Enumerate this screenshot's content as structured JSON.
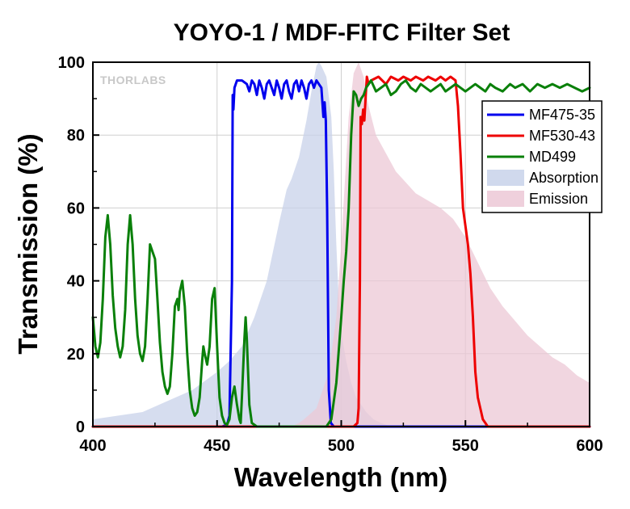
{
  "chart_data": {
    "type": "line",
    "title": "YOYO-1 / MDF-FITC Filter Set",
    "xlabel": "Wavelength (nm)",
    "ylabel": "Transmission (%)",
    "xlim": [
      400,
      600
    ],
    "ylim": [
      0,
      100
    ],
    "x_ticks": [
      400,
      450,
      500,
      550,
      600
    ],
    "y_ticks": [
      0,
      20,
      40,
      60,
      80,
      100
    ],
    "grid": true,
    "legend_position": "right",
    "logo_text": "THORLABS",
    "series": [
      {
        "name": "MF475-35",
        "kind": "line",
        "color": "#0000ee",
        "points": [
          [
            400,
            0
          ],
          [
            452,
            0
          ],
          [
            454,
            0.5
          ],
          [
            455,
            3
          ],
          [
            456,
            40
          ],
          [
            456.3,
            91
          ],
          [
            456.6,
            87
          ],
          [
            457,
            93
          ],
          [
            458,
            95
          ],
          [
            460,
            95
          ],
          [
            462,
            94
          ],
          [
            463,
            92
          ],
          [
            464,
            95
          ],
          [
            465,
            94
          ],
          [
            466,
            91
          ],
          [
            467,
            95
          ],
          [
            468,
            93
          ],
          [
            469,
            90
          ],
          [
            470,
            94
          ],
          [
            471,
            95
          ],
          [
            472,
            93
          ],
          [
            473,
            91
          ],
          [
            474,
            95
          ],
          [
            475,
            93
          ],
          [
            476,
            90
          ],
          [
            477,
            94
          ],
          [
            478,
            95
          ],
          [
            479,
            92
          ],
          [
            480,
            90
          ],
          [
            481,
            94
          ],
          [
            482,
            95
          ],
          [
            483,
            92
          ],
          [
            484,
            95
          ],
          [
            485,
            93
          ],
          [
            486,
            90
          ],
          [
            487,
            94
          ],
          [
            488,
            95
          ],
          [
            489,
            93
          ],
          [
            490,
            95
          ],
          [
            491,
            94
          ],
          [
            492,
            93
          ],
          [
            492.8,
            85
          ],
          [
            493.3,
            89
          ],
          [
            493.8,
            84
          ],
          [
            494.3,
            60
          ],
          [
            495,
            10
          ],
          [
            495.8,
            1
          ],
          [
            497,
            0
          ],
          [
            600,
            0
          ]
        ]
      },
      {
        "name": "MF530-43",
        "kind": "line",
        "color": "#ee0000",
        "points": [
          [
            400,
            0
          ],
          [
            505,
            0
          ],
          [
            506.5,
            1
          ],
          [
            507,
            5
          ],
          [
            507.5,
            40
          ],
          [
            507.8,
            85
          ],
          [
            508.3,
            83
          ],
          [
            508.8,
            87
          ],
          [
            509.3,
            84
          ],
          [
            509.8,
            90
          ],
          [
            510.3,
            96
          ],
          [
            511,
            94
          ],
          [
            512,
            95
          ],
          [
            515,
            96
          ],
          [
            518,
            94
          ],
          [
            520,
            96
          ],
          [
            523,
            95
          ],
          [
            525,
            96
          ],
          [
            528,
            95
          ],
          [
            530,
            96
          ],
          [
            533,
            95
          ],
          [
            535,
            96
          ],
          [
            538,
            95
          ],
          [
            540,
            96
          ],
          [
            542,
            95
          ],
          [
            544,
            96
          ],
          [
            546,
            95
          ],
          [
            547,
            88
          ],
          [
            548,
            75
          ],
          [
            549,
            60
          ],
          [
            550,
            55
          ],
          [
            551,
            50
          ],
          [
            552,
            42
          ],
          [
            553,
            30
          ],
          [
            554,
            15
          ],
          [
            555,
            8
          ],
          [
            556,
            5
          ],
          [
            557,
            2
          ],
          [
            558,
            1
          ],
          [
            559,
            0
          ],
          [
            600,
            0
          ]
        ]
      },
      {
        "name": "MD499",
        "kind": "line",
        "color": "#0a800a",
        "points": [
          [
            400,
            30
          ],
          [
            401,
            22
          ],
          [
            402,
            19
          ],
          [
            403,
            23
          ],
          [
            404,
            35
          ],
          [
            405,
            52
          ],
          [
            406,
            58
          ],
          [
            407,
            50
          ],
          [
            408,
            36
          ],
          [
            409,
            27
          ],
          [
            410,
            22
          ],
          [
            411,
            19
          ],
          [
            412,
            22
          ],
          [
            413,
            32
          ],
          [
            414,
            50
          ],
          [
            415,
            58
          ],
          [
            416,
            50
          ],
          [
            417,
            35
          ],
          [
            418,
            25
          ],
          [
            419,
            20
          ],
          [
            420,
            18
          ],
          [
            421,
            22
          ],
          [
            422,
            35
          ],
          [
            423,
            50
          ],
          [
            424,
            48
          ],
          [
            425,
            46
          ],
          [
            426,
            35
          ],
          [
            427,
            23
          ],
          [
            428,
            15
          ],
          [
            429,
            11
          ],
          [
            430,
            9
          ],
          [
            431,
            11
          ],
          [
            432,
            20
          ],
          [
            433,
            33
          ],
          [
            434,
            35
          ],
          [
            434.5,
            32
          ],
          [
            435,
            37
          ],
          [
            436,
            40
          ],
          [
            437,
            33
          ],
          [
            438,
            20
          ],
          [
            439,
            10
          ],
          [
            440,
            5
          ],
          [
            441,
            3
          ],
          [
            442,
            4
          ],
          [
            443,
            8
          ],
          [
            444,
            18
          ],
          [
            444.5,
            22
          ],
          [
            445,
            20
          ],
          [
            446,
            17
          ],
          [
            447,
            22
          ],
          [
            448,
            35
          ],
          [
            449,
            38
          ],
          [
            450,
            22
          ],
          [
            451,
            8
          ],
          [
            452,
            3
          ],
          [
            453,
            1
          ],
          [
            454,
            0.5
          ],
          [
            455,
            2
          ],
          [
            456,
            8
          ],
          [
            457,
            11
          ],
          [
            458,
            6
          ],
          [
            459,
            2
          ],
          [
            459.5,
            1
          ],
          [
            460,
            8
          ],
          [
            461,
            24
          ],
          [
            461.5,
            30
          ],
          [
            462,
            24
          ],
          [
            463,
            6
          ],
          [
            464,
            1
          ],
          [
            466,
            0
          ],
          [
            490,
            0
          ],
          [
            494,
            0
          ],
          [
            496,
            2
          ],
          [
            498,
            12
          ],
          [
            500,
            30
          ],
          [
            501,
            40
          ],
          [
            502,
            48
          ],
          [
            503,
            60
          ],
          [
            504,
            80
          ],
          [
            505,
            92
          ],
          [
            506,
            91
          ],
          [
            507,
            88
          ],
          [
            508,
            90
          ],
          [
            509,
            91
          ],
          [
            510,
            93
          ],
          [
            512,
            95
          ],
          [
            514,
            92
          ],
          [
            516,
            93
          ],
          [
            518,
            94
          ],
          [
            520,
            91
          ],
          [
            522,
            92
          ],
          [
            524,
            94
          ],
          [
            526,
            95
          ],
          [
            528,
            93
          ],
          [
            530,
            92
          ],
          [
            532,
            94
          ],
          [
            534,
            93
          ],
          [
            536,
            92
          ],
          [
            538,
            93
          ],
          [
            540,
            94
          ],
          [
            542,
            92
          ],
          [
            544,
            93
          ],
          [
            546,
            94
          ],
          [
            548,
            93
          ],
          [
            550,
            92
          ],
          [
            552,
            93
          ],
          [
            554,
            94
          ],
          [
            556,
            93
          ],
          [
            558,
            92
          ],
          [
            560,
            94
          ],
          [
            562,
            93
          ],
          [
            565,
            92
          ],
          [
            568,
            94
          ],
          [
            570,
            93
          ],
          [
            573,
            94
          ],
          [
            576,
            92
          ],
          [
            579,
            94
          ],
          [
            582,
            93
          ],
          [
            585,
            94
          ],
          [
            588,
            93
          ],
          [
            591,
            94
          ],
          [
            594,
            93
          ],
          [
            597,
            92
          ],
          [
            600,
            93
          ]
        ]
      },
      {
        "name": "Absorption",
        "kind": "area",
        "color": "#c8d2ea",
        "points": [
          [
            400,
            2
          ],
          [
            410,
            3
          ],
          [
            420,
            4
          ],
          [
            430,
            7
          ],
          [
            440,
            10
          ],
          [
            450,
            15
          ],
          [
            455,
            18
          ],
          [
            460,
            22
          ],
          [
            465,
            30
          ],
          [
            470,
            40
          ],
          [
            475,
            56
          ],
          [
            478,
            65
          ],
          [
            480,
            68
          ],
          [
            483,
            74
          ],
          [
            486,
            84
          ],
          [
            488,
            92
          ],
          [
            490,
            99
          ],
          [
            491,
            100
          ],
          [
            492,
            99
          ],
          [
            494,
            96
          ],
          [
            496,
            85
          ],
          [
            497,
            70
          ],
          [
            498,
            50
          ],
          [
            499,
            35
          ],
          [
            500,
            26
          ],
          [
            502,
            18
          ],
          [
            504,
            12
          ],
          [
            506,
            8
          ],
          [
            508,
            6
          ],
          [
            510,
            4
          ],
          [
            513,
            2
          ],
          [
            516,
            1
          ],
          [
            520,
            0
          ]
        ]
      },
      {
        "name": "Emission",
        "kind": "area",
        "color": "#ecc8d6",
        "points": [
          [
            480,
            0
          ],
          [
            483,
            1
          ],
          [
            485,
            2
          ],
          [
            490,
            5
          ],
          [
            495,
            15
          ],
          [
            498,
            30
          ],
          [
            500,
            50
          ],
          [
            501,
            62
          ],
          [
            503,
            85
          ],
          [
            505,
            97
          ],
          [
            507,
            100
          ],
          [
            509,
            96
          ],
          [
            511,
            88
          ],
          [
            514,
            80
          ],
          [
            518,
            75
          ],
          [
            522,
            70
          ],
          [
            526,
            67
          ],
          [
            530,
            64
          ],
          [
            535,
            62
          ],
          [
            540,
            60
          ],
          [
            545,
            57
          ],
          [
            550,
            52
          ],
          [
            555,
            45
          ],
          [
            560,
            38
          ],
          [
            565,
            33
          ],
          [
            570,
            29
          ],
          [
            575,
            25
          ],
          [
            580,
            22
          ],
          [
            585,
            19
          ],
          [
            590,
            17
          ],
          [
            595,
            14
          ],
          [
            600,
            12
          ]
        ]
      }
    ]
  }
}
